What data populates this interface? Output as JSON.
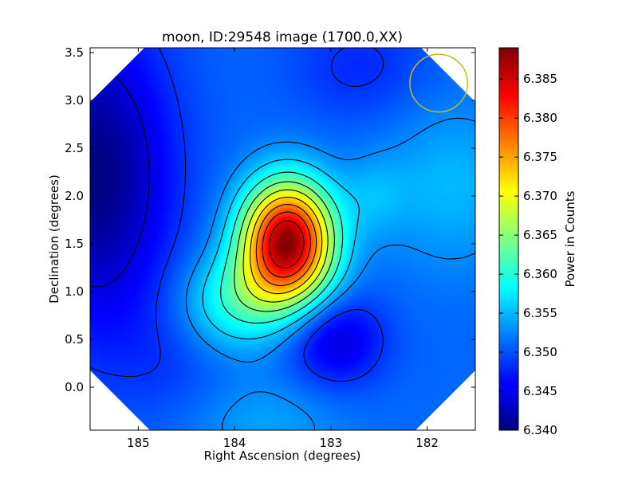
{
  "chart_data": {
    "type": "heatmap",
    "title": "moon, ID:29548 image (1700.0,XX)",
    "xlabel": "Right Ascension (degrees)",
    "ylabel": "Declination (degrees)",
    "xlim": [
      185.5,
      181.5
    ],
    "ylim": [
      -0.45,
      3.55
    ],
    "x_ticks": [
      185,
      184,
      183,
      182
    ],
    "x_tick_labels": [
      "185",
      "184",
      "183",
      "182"
    ],
    "y_ticks": [
      0.0,
      0.5,
      1.0,
      1.5,
      2.0,
      2.5,
      3.0,
      3.5
    ],
    "y_tick_labels": [
      "0.0",
      "0.5",
      "1.0",
      "1.5",
      "2.0",
      "2.5",
      "3.0",
      "3.5"
    ],
    "colorbar": {
      "label": "Power in Counts",
      "colormap": "jet",
      "range": [
        6.34,
        6.389
      ],
      "ticks": [
        6.34,
        6.345,
        6.35,
        6.355,
        6.36,
        6.365,
        6.37,
        6.375,
        6.38,
        6.385
      ],
      "tick_labels": [
        "6.340",
        "6.345",
        "6.350",
        "6.355",
        "6.360",
        "6.365",
        "6.370",
        "6.375",
        "6.380",
        "6.385"
      ]
    },
    "background_level": 6.351,
    "features": [
      {
        "kind": "peak",
        "ra": 183.45,
        "dec": 1.55,
        "amplitude": 0.036,
        "sigma_ra": 0.33,
        "sigma_dec": 0.42
      },
      {
        "kind": "peak",
        "ra": 183.65,
        "dec": 1.05,
        "amplitude": 0.006,
        "sigma_ra": 0.45,
        "sigma_dec": 0.32
      },
      {
        "kind": "peak",
        "ra": 184.05,
        "dec": 0.8,
        "amplitude": 0.006,
        "sigma_ra": 0.4,
        "sigma_dec": 0.35
      },
      {
        "kind": "peak",
        "ra": 182.55,
        "dec": 2.0,
        "amplitude": 0.003,
        "sigma_ra": 0.25,
        "sigma_dec": 0.3
      },
      {
        "kind": "peak",
        "ra": 181.75,
        "dec": 2.1,
        "amplitude": 0.004,
        "sigma_ra": 0.5,
        "sigma_dec": 0.6
      },
      {
        "kind": "peak",
        "ra": 183.7,
        "dec": -0.35,
        "amplitude": 0.003,
        "sigma_ra": 0.6,
        "sigma_dec": 0.35
      },
      {
        "kind": "dip",
        "ra": 185.45,
        "dec": 2.2,
        "amplitude": 0.011,
        "sigma_ra": 0.55,
        "sigma_dec": 1.1
      },
      {
        "kind": "dip",
        "ra": 182.95,
        "dec": 0.5,
        "amplitude": 0.007,
        "sigma_ra": 0.35,
        "sigma_dec": 0.35
      },
      {
        "kind": "dip",
        "ra": 182.7,
        "dec": 3.35,
        "amplitude": 0.003,
        "sigma_ra": 0.5,
        "sigma_dec": 0.4
      },
      {
        "kind": "dip",
        "ra": 184.6,
        "dec": 0.3,
        "amplitude": 0.002,
        "sigma_ra": 0.5,
        "sigma_dec": 0.5
      }
    ],
    "contour_levels": [
      6.3445,
      6.3485,
      6.3528,
      6.356,
      6.36,
      6.364,
      6.368,
      6.372,
      6.376,
      6.38,
      6.384
    ],
    "beam_circle": {
      "ra": 181.88,
      "dec": 3.18,
      "radius": 0.3,
      "color": "#bcbc22"
    },
    "masked_corners": true
  }
}
